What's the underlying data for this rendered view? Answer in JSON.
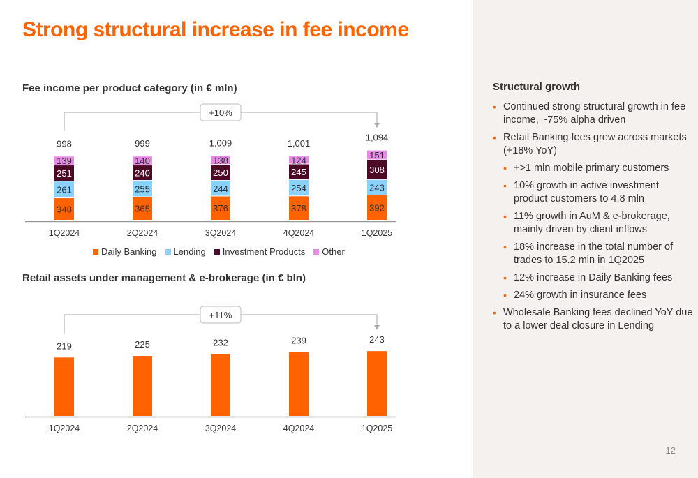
{
  "slide": {
    "title": "Strong structural increase in fee income",
    "page_number": "12"
  },
  "side_panel": {
    "heading": "Structural growth",
    "bullets": [
      {
        "level": 1,
        "text": "Continued strong structural growth in fee income, ~75% alpha driven"
      },
      {
        "level": 1,
        "text": "Retail Banking fees grew across markets (+18% YoY)"
      },
      {
        "level": 2,
        "text": "+>1 mln mobile primary customers"
      },
      {
        "level": 2,
        "text": "10% growth in active investment product customers to 4.8 mln"
      },
      {
        "level": 2,
        "text": "11% growth in AuM & e-brokerage, mainly driven by client inflows"
      },
      {
        "level": 2,
        "text": "18% increase in the total number of trades to 15.2 mln in 1Q2025"
      },
      {
        "level": 2,
        "text": "12% increase in Daily Banking fees"
      },
      {
        "level": 2,
        "text": "24% growth in insurance fees"
      },
      {
        "level": 1,
        "text": "Wholesale Banking fees declined YoY due to a lower deal closure in Lending"
      }
    ]
  },
  "colors": {
    "accent": "#ff6200",
    "daily_banking": "#ff6200",
    "lending": "#89d2ff",
    "investment_products": "#4d0a26",
    "other": "#e58ae6",
    "axis": "#999999",
    "panel_bg": "#f4f1ee"
  },
  "chart_data": [
    {
      "type": "bar",
      "stacked": true,
      "title": "Fee income per product category (in € mln)",
      "categories": [
        "1Q2024",
        "2Q2024",
        "3Q2024",
        "4Q2024",
        "1Q2025"
      ],
      "series": [
        {
          "name": "Daily Banking",
          "color": "#ff6200",
          "values": [
            348,
            365,
            376,
            378,
            392
          ]
        },
        {
          "name": "Lending",
          "color": "#89d2ff",
          "values": [
            261,
            255,
            244,
            254,
            243
          ]
        },
        {
          "name": "Investment Products",
          "color": "#4d0a26",
          "values": [
            251,
            240,
            250,
            245,
            308
          ]
        },
        {
          "name": "Other",
          "color": "#e58ae6",
          "values": [
            139,
            140,
            138,
            124,
            151
          ]
        }
      ],
      "totals": [
        "998",
        "999",
        "1,009",
        "1,001",
        "1,094"
      ],
      "growth_annotation": "+10%",
      "legend": "bottom"
    },
    {
      "type": "bar",
      "title": "Retail assets under management & e-brokerage (in € bln)",
      "categories": [
        "1Q2024",
        "2Q2024",
        "3Q2024",
        "4Q2024",
        "1Q2025"
      ],
      "values": [
        219,
        225,
        232,
        239,
        243
      ],
      "color": "#ff6200",
      "growth_annotation": "+11%"
    }
  ]
}
